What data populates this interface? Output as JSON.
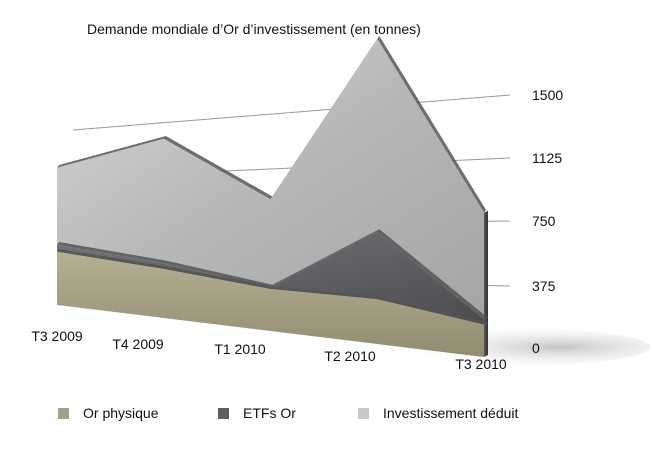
{
  "chart_data": {
    "type": "area",
    "stacked": true,
    "three_d": true,
    "title": "Demande mondiale d’Or d’investissement (en tonnes)",
    "categories": [
      "T3 2009",
      "T4 2009",
      "T1 2010",
      "T2 2010",
      "T3 2010"
    ],
    "series": [
      {
        "name": "Or physique",
        "values": [
          190,
          175,
          150,
          160,
          115
        ]
      },
      {
        "name": "ETFs Or",
        "values": [
          25,
          20,
          5,
          240,
          20
        ]
      },
      {
        "name": "Investissement déduit",
        "values": [
          275,
          445,
          315,
          690,
          380
        ]
      }
    ],
    "yticks": [
      0,
      375,
      750,
      1125,
      1500
    ],
    "ylim": [
      0,
      1500
    ],
    "gridlines": true,
    "legend_position": "bottom",
    "colors": {
      "Or physique": "#a59f84",
      "ETFs Or": "#5e5e60",
      "Investissement déduit": "#c6c7c8"
    }
  }
}
